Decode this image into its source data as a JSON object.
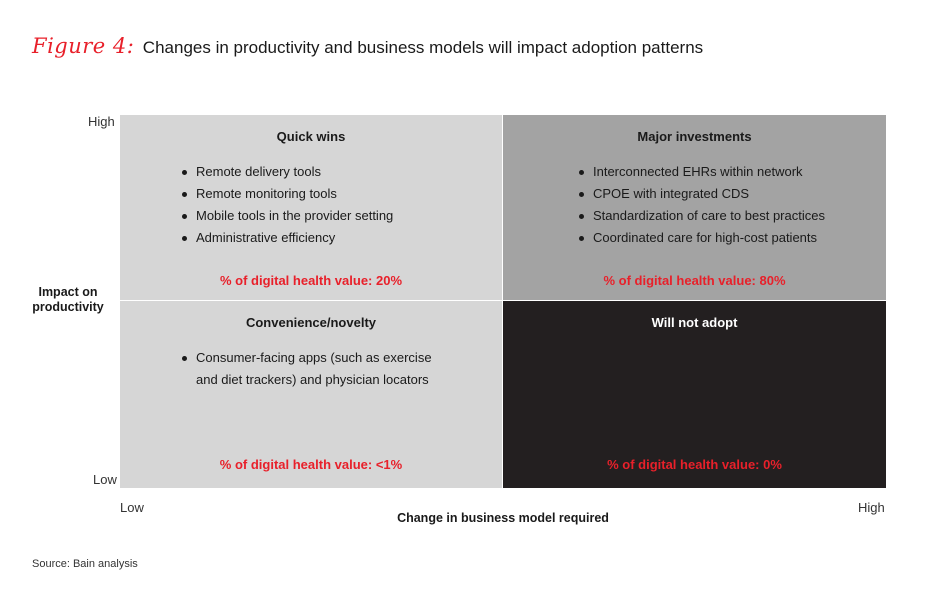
{
  "figure": {
    "label": "Figure 4:",
    "title": "Changes in productivity and business models will impact adoption patterns"
  },
  "axes": {
    "y_title": "Impact on productivity",
    "y_high": "High",
    "y_low": "Low",
    "x_title": "Change in business model required",
    "x_low": "Low",
    "x_high": "High"
  },
  "quadrants": {
    "top_left": {
      "title": "Quick wins",
      "items": [
        "Remote delivery tools",
        "Remote monitoring tools",
        "Mobile tools in the provider setting",
        "Administrative efficiency"
      ],
      "value": "% of digital health value: 20%",
      "color": "#d6d6d6"
    },
    "top_right": {
      "title": "Major investments",
      "items": [
        "Interconnected EHRs within network",
        "CPOE with integrated CDS",
        "Standardization of care to best practices",
        "Coordinated care for high-cost patients"
      ],
      "value": "% of digital health value: 80%",
      "color": "#a3a3a3"
    },
    "bottom_left": {
      "title": "Convenience/novelty",
      "items": [
        "Consumer-facing apps (such as exercise",
        "and diet trackers) and physician locators"
      ],
      "value": "% of digital health value: <1%",
      "color": "#d6d6d6"
    },
    "bottom_right": {
      "title": "Will not adopt",
      "items": [],
      "value": "% of digital health value: 0%",
      "color": "#231f20"
    }
  },
  "source": "Source: Bain analysis",
  "accent_color": "#e8202a"
}
